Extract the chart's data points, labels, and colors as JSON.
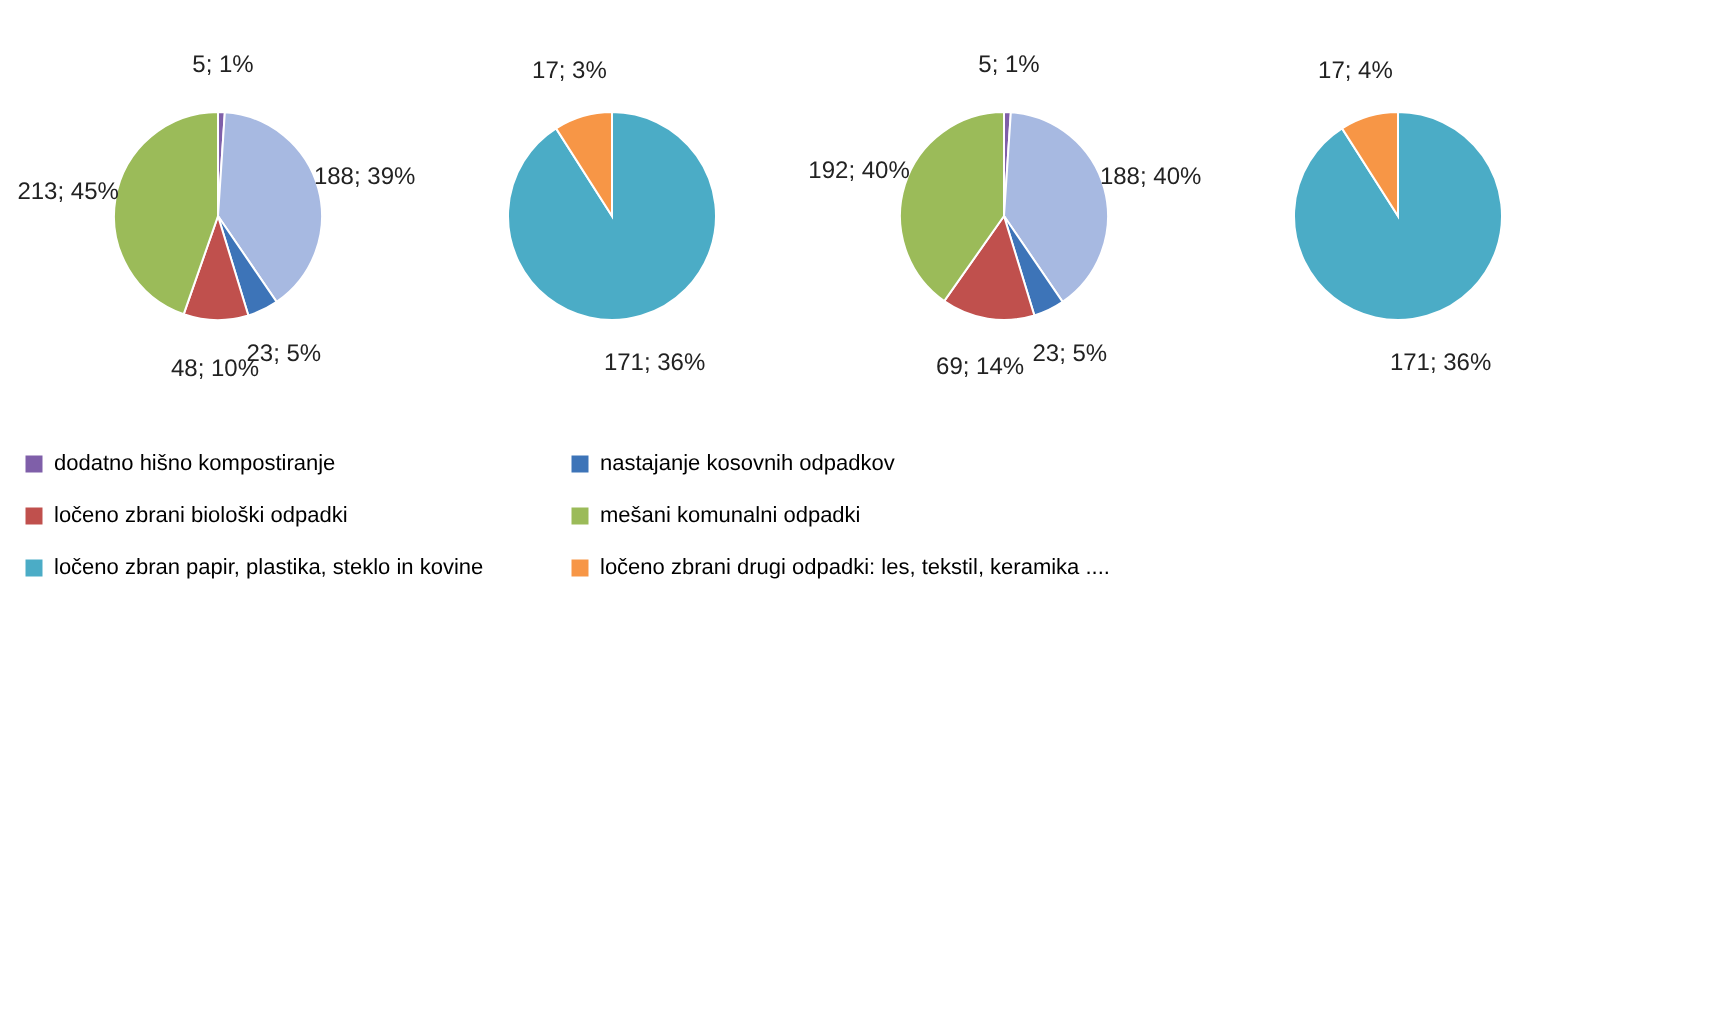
{
  "chart_data": [
    {
      "type": "pie",
      "categories": [
        "dodatno hišno kompostiranje",
        null,
        "nastajanje kosovnih odpadkov",
        "ločeno zbrani biološki odpadki",
        "mešani komunalni odpadki"
      ],
      "values": [
        5,
        188,
        23,
        48,
        213
      ],
      "colors": [
        "#7f5fa9",
        "#a7b9e1",
        "#3d74b8",
        "#c0504d",
        "#9bbb59"
      ],
      "value_labels": [
        "5; 1%",
        "188; 39%",
        "23; 5%",
        "48; 10%",
        "213; 45%"
      ],
      "legend": "bottom"
    },
    {
      "type": "pie",
      "categories": [
        "ločeno zbran papir, plastika, steklo in kovine",
        "ločeno zbrani drugi odpadki: les, tekstil, keramika ...."
      ],
      "values": [
        171,
        17
      ],
      "colors": [
        "#4bacc6",
        "#f79646"
      ],
      "value_labels": [
        "171; 36%",
        "17; 3%"
      ],
      "legend": "bottom"
    },
    {
      "type": "pie",
      "categories": [
        null,
        null,
        null,
        null,
        null
      ],
      "values": [
        5,
        188,
        23,
        69,
        192
      ],
      "colors": [
        "#7f5fa9",
        "#a7b9e1",
        "#3d74b8",
        "#c0504d",
        "#9bbb59"
      ],
      "value_labels": [
        "5; 1%",
        "188; 40%",
        "23; 5%",
        "69; 14%",
        "192; 40%"
      ]
    },
    {
      "type": "pie",
      "categories": [
        null,
        null
      ],
      "values": [
        171,
        17
      ],
      "colors": [
        "#4bacc6",
        "#f79646"
      ],
      "value_labels": [
        "171; 36%",
        "17; 4%"
      ]
    }
  ]
}
